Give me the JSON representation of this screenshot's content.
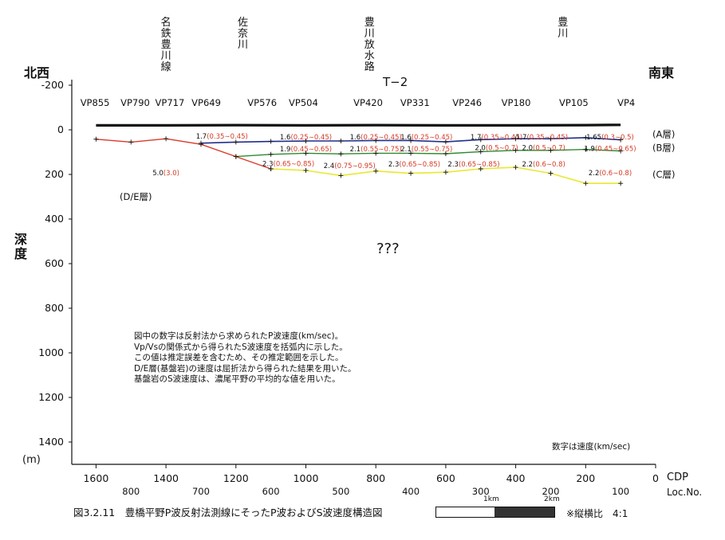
{
  "profile_name": "T−2",
  "direction_left": "北西",
  "direction_right": "南東",
  "depth_label": "深度",
  "unit_label": "(m)",
  "speed_note": "数字は速度(km/sec)",
  "xlabel": "CDP",
  "xlabel2": "Loc.No.",
  "place_labels": [
    {
      "text": "名鉄豊川線",
      "cdp": 1400
    },
    {
      "text": "佐奈川",
      "cdp": 1180
    },
    {
      "text": "豊川放水路",
      "cdp": 818
    },
    {
      "text": "豊川",
      "cdp": 265
    }
  ],
  "vp_labels": [
    {
      "text": "VP855",
      "cdp": 1603
    },
    {
      "text": "VP790",
      "cdp": 1488
    },
    {
      "text": "VP717",
      "cdp": 1389
    },
    {
      "text": "VP649",
      "cdp": 1285
    },
    {
      "text": "VP576",
      "cdp": 1125
    },
    {
      "text": "VP504",
      "cdp": 1007
    },
    {
      "text": "VP420",
      "cdp": 822
    },
    {
      "text": "VP331",
      "cdp": 688
    },
    {
      "text": "VP246",
      "cdp": 539
    },
    {
      "text": "VP180",
      "cdp": 399
    },
    {
      "text": "VP105",
      "cdp": 234
    },
    {
      "text": "VP4",
      "cdp": 84
    }
  ],
  "notes": [
    "図中の数字は反射法から求められたP波速度(km/sec)。",
    "Vp/Vsの関係式から得られたS波速度を括弧内に示した。",
    "この値は推定誤差を含むため、その推定範囲を示した。",
    "D/E層(基盤岩)の速度は屈折法から得られた結果を用いた。",
    "基盤岩のS波速度は、濃尾平野の平均的な値を用いた。"
  ],
  "caption": "図3.2.11　豊橋平野P波反射法測線にそったP波およびS波速度構造図",
  "scale_1km": "1km",
  "scale_2km": "2km",
  "ratio_note": "※縦横比　4:1",
  "unknown_label": "???",
  "colors": {
    "surface": "#111111",
    "A_boundary": "#1f2f8c",
    "B_boundary": "#2f8a2f",
    "C_boundary": "#e8e830",
    "DE_boundary": "#d83a2a",
    "s_wave_text": "#d43a24"
  },
  "chart_data": {
    "type": "line",
    "xlabel": "CDP",
    "ylabel": "深度",
    "xlim": [
      1650,
      0
    ],
    "ylim": [
      -200,
      1500
    ],
    "x_ticks": [
      1600,
      1400,
      1200,
      1000,
      800,
      600,
      400,
      200,
      0
    ],
    "loc_ticks": [
      {
        "label": "800",
        "cdp": 1500
      },
      {
        "label": "700",
        "cdp": 1300
      },
      {
        "label": "600",
        "cdp": 1100
      },
      {
        "label": "500",
        "cdp": 900
      },
      {
        "label": "400",
        "cdp": 700
      },
      {
        "label": "300",
        "cdp": 500
      },
      {
        "label": "200",
        "cdp": 300
      },
      {
        "label": "100",
        "cdp": 100
      }
    ],
    "y_ticks": [
      -200,
      0,
      200,
      400,
      600,
      800,
      1000,
      1200,
      1400
    ],
    "series": [
      {
        "key": "surface",
        "x": [
          1600,
          1400,
          1200,
          1000,
          800,
          600,
          400,
          200,
          100
        ],
        "y": [
          -20,
          -20,
          -21,
          -20,
          -21,
          -20,
          -20,
          -21,
          -22
        ]
      },
      {
        "key": "A_boundary",
        "x": [
          1300,
          1200,
          1100,
          1000,
          900,
          800,
          700,
          600,
          500,
          400,
          300,
          200,
          100
        ],
        "y": [
          60,
          55,
          52,
          50,
          50,
          48,
          48,
          54,
          44,
          40,
          40,
          35,
          45
        ]
      },
      {
        "key": "B_boundary",
        "x": [
          1200,
          1100,
          1000,
          900,
          800,
          700,
          600,
          500,
          400,
          300,
          200,
          100
        ],
        "y": [
          120,
          110,
          105,
          108,
          105,
          105,
          107,
          98,
          92,
          92,
          88,
          95
        ]
      },
      {
        "key": "C_boundary",
        "x": [
          1100,
          1000,
          900,
          800,
          700,
          600,
          500,
          400,
          300,
          200,
          100
        ],
        "y": [
          175,
          182,
          205,
          185,
          195,
          190,
          175,
          168,
          195,
          240,
          240
        ]
      },
      {
        "key": "DE_boundary",
        "x": [
          1600,
          1500,
          1400,
          1300,
          1200,
          1100
        ],
        "y": [
          42,
          55,
          40,
          65,
          120,
          175
        ]
      }
    ],
    "velocity_labels": [
      {
        "vp": "1.7",
        "vs": "(0.35∼0.45)",
        "x": 1240,
        "y": 25
      },
      {
        "vp": "1.6",
        "vs": "(0.25∼0.45)",
        "x": 1000,
        "y": 28
      },
      {
        "vp": "1.6",
        "vs": "(0.25∼0.45)",
        "x": 800,
        "y": 28
      },
      {
        "vp": "1.6",
        "vs": "(0.25∼0.45)",
        "x": 655,
        "y": 28
      },
      {
        "vp": "1.7",
        "vs": "(0.35∼0.45)",
        "x": 455,
        "y": 28
      },
      {
        "vp": "1.7",
        "vs": "(0.35∼0.45)",
        "x": 325,
        "y": 28
      },
      {
        "vp": "1.65",
        "vs": "(0.3∼0.5)",
        "x": 130,
        "y": 28
      },
      {
        "vp": "1.9",
        "vs": "(0.45∼0.65)",
        "x": 1000,
        "y": 83
      },
      {
        "vp": "2.1",
        "vs": "(0.55∼0.75)",
        "x": 800,
        "y": 83
      },
      {
        "vp": "2.1",
        "vs": "(0.55∼0.75)",
        "x": 655,
        "y": 83
      },
      {
        "vp": "2.0",
        "vs": "(0.5∼0.7)",
        "x": 455,
        "y": 76
      },
      {
        "vp": "2.0",
        "vs": "(0.5∼0.7)",
        "x": 320,
        "y": 76
      },
      {
        "vp": "1.9",
        "vs": "(0.45∼0.65)",
        "x": 130,
        "y": 80
      },
      {
        "vp": "2.3",
        "vs": "(0.65∼0.85)",
        "x": 1050,
        "y": 148
      },
      {
        "vp": "2.4",
        "vs": "(0.75∼0.95)",
        "x": 875,
        "y": 158
      },
      {
        "vp": "2.3",
        "vs": "(0.65∼0.85)",
        "x": 690,
        "y": 150
      },
      {
        "vp": "2.3",
        "vs": "(0.65∼0.85)",
        "x": 520,
        "y": 150
      },
      {
        "vp": "2.2",
        "vs": "(0.6∼0.8)",
        "x": 320,
        "y": 150
      },
      {
        "vp": "2.2",
        "vs": "(0.6∼0.8)",
        "x": 130,
        "y": 190
      },
      {
        "vp": "5.0",
        "vs": "(3.0)",
        "x": 1400,
        "y": 190
      }
    ],
    "layer_labels": [
      {
        "text": "(A層)",
        "y": 20
      },
      {
        "text": "(B層)",
        "y": 80
      },
      {
        "text": "(C層)",
        "y": 200
      },
      {
        "text": "(D/E層)",
        "y": 300
      }
    ]
  }
}
